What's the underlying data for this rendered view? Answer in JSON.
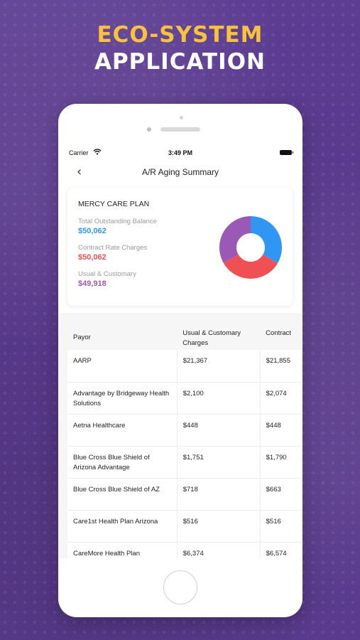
{
  "headline": {
    "line1": "ECO-SYSTEM",
    "line2": "APPLICATION"
  },
  "status_bar": {
    "carrier": "Carrier",
    "time": "3:49 PM"
  },
  "nav": {
    "title": "A/R Aging Summary",
    "back_icon": "chevron-left-icon"
  },
  "summary": {
    "plan_name": "MERCY CARE PLAN",
    "total_outstanding": {
      "label": "Total Outstanding Balance",
      "value": "$50,062",
      "color": "#2f96f3"
    },
    "contract_rate": {
      "label": "Contract Rate Charges",
      "value": "$50,062",
      "color": "#f04f54"
    },
    "usual_customary": {
      "label": "Usual & Customary",
      "value": "$49,918",
      "color": "#9b59b6"
    }
  },
  "chart_data": {
    "type": "pie",
    "donut": true,
    "categories": [
      "Total Outstanding Balance",
      "Contract Rate Charges",
      "Usual & Customary"
    ],
    "values": [
      50062,
      50062,
      49918
    ],
    "colors": [
      "#2f96f3",
      "#f04f54",
      "#9b59b6"
    ]
  },
  "table": {
    "headers": [
      "Payor",
      "Usual & Customary Charges",
      "Contract"
    ],
    "rows": [
      [
        "AARP",
        "$21,367",
        "$21,855"
      ],
      [
        "Advantage by Bridgeway Health Solutions",
        "$2,100",
        "$2,074"
      ],
      [
        "Aetna Healthcare",
        "$448",
        "$448"
      ],
      [
        "Blue Cross Blue Shield of Arizona Advantage",
        "$1,751",
        "$1,790"
      ],
      [
        "Blue Cross Blue Shield of AZ",
        "$718",
        "$663"
      ],
      [
        "Care1st Health Plan Arizona",
        "$516",
        "$516"
      ],
      [
        "CareMore Health Plan",
        "$6,374",
        "$6,574"
      ]
    ]
  }
}
